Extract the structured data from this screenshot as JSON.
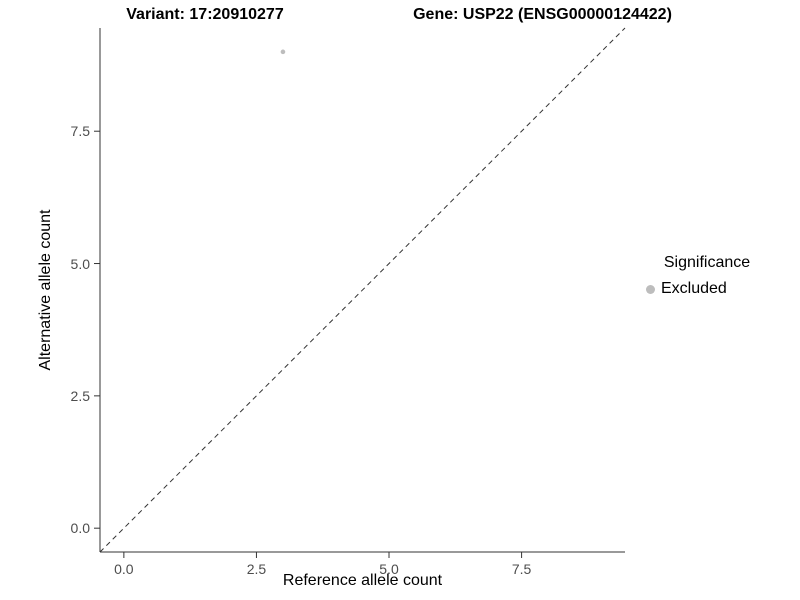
{
  "chart_data": {
    "type": "scatter",
    "title_left": "Variant: 17:20910277",
    "title_right": "Gene: USP22 (ENSG00000124422)",
    "xlabel": "Reference allele count",
    "ylabel": "Alternative allele count",
    "xlim": [
      -0.45,
      9.45
    ],
    "ylim": [
      -0.45,
      9.45
    ],
    "xticks": [
      0,
      2.5,
      5,
      7.5
    ],
    "xtick_labels": [
      "0.0",
      "2.5",
      "5.0",
      "7.5"
    ],
    "yticks": [
      0,
      2.5,
      5,
      7.5
    ],
    "ytick_labels": [
      "0.0",
      "2.5",
      "5.0",
      "7.5"
    ],
    "grid": false,
    "points": [
      {
        "x": 3,
        "y": 9,
        "series": "Excluded"
      }
    ],
    "point_color": "#bdbdbd",
    "identity_line": {
      "style": "dashed",
      "slope": 1,
      "intercept": 0
    },
    "legend": {
      "title": "Significance",
      "position": "right",
      "entries": [
        {
          "label": "Excluded",
          "color": "#bdbdbd"
        }
      ]
    },
    "axis_color": "#333333",
    "tick_text_color": "#4d4d4d"
  }
}
